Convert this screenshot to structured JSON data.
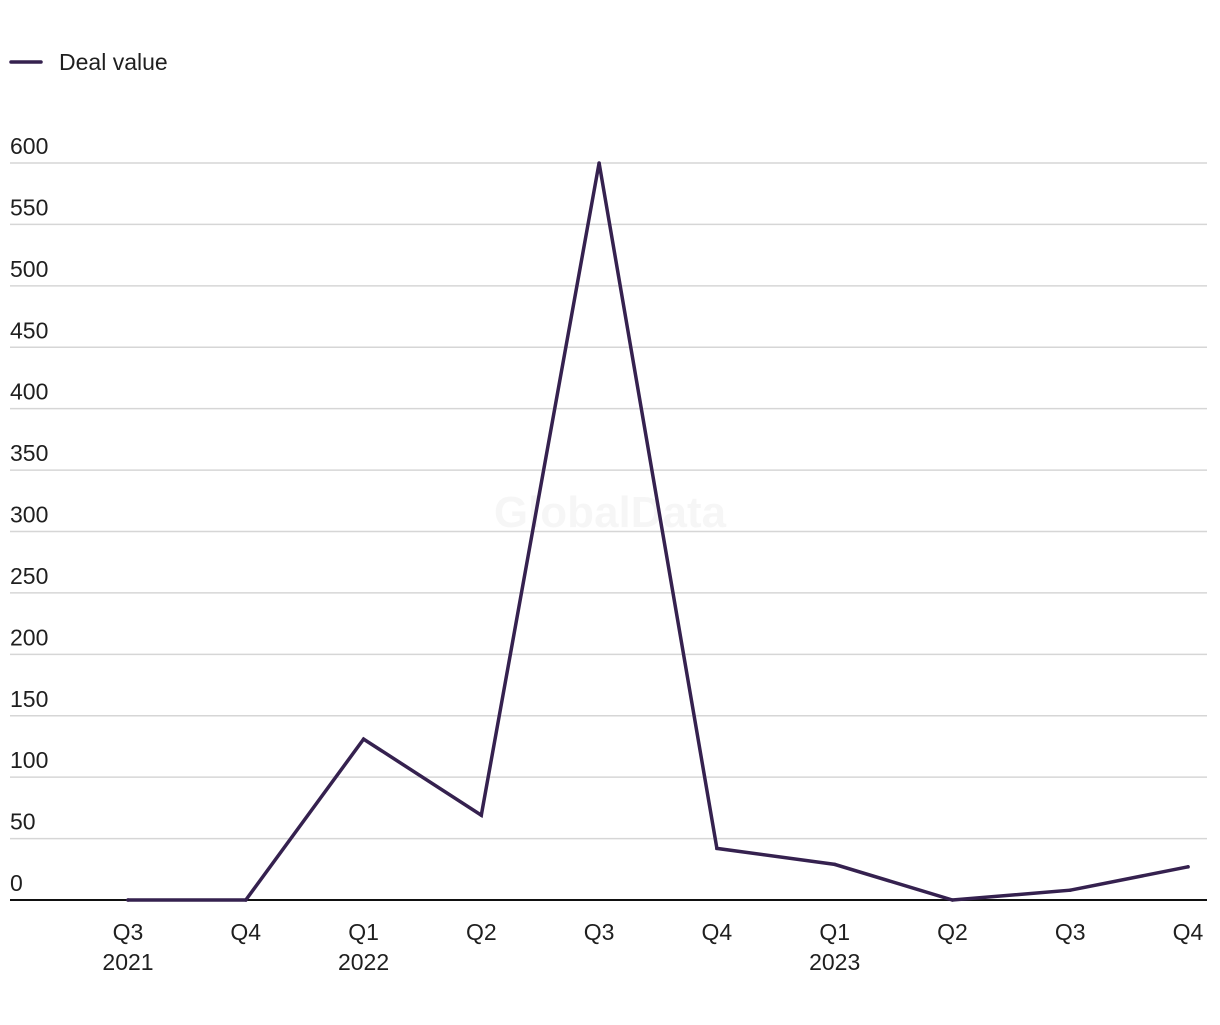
{
  "legend": {
    "label": "Deal value"
  },
  "watermark": "GlobalData",
  "colors": {
    "series": "#35214f",
    "grid": "#d6d6d6",
    "axis": "#111111"
  },
  "chart_data": {
    "type": "line",
    "categories": [
      "Q3",
      "Q4",
      "Q1",
      "Q2",
      "Q3",
      "Q4",
      "Q1",
      "Q2",
      "Q3",
      "Q4"
    ],
    "category_years": [
      "2021",
      "",
      "2022",
      "",
      "",
      "",
      "2023",
      "",
      "",
      ""
    ],
    "series": [
      {
        "name": "Deal value",
        "values": [
          0,
          0,
          131,
          69,
          600,
          42,
          29,
          0,
          8,
          27
        ]
      }
    ],
    "yticks": [
      0,
      50,
      100,
      150,
      200,
      250,
      300,
      350,
      400,
      450,
      500,
      550,
      600
    ],
    "ylim": [
      0,
      600
    ],
    "title": "",
    "xlabel": "",
    "ylabel": "",
    "grid": true,
    "legend_position": "top-left"
  }
}
